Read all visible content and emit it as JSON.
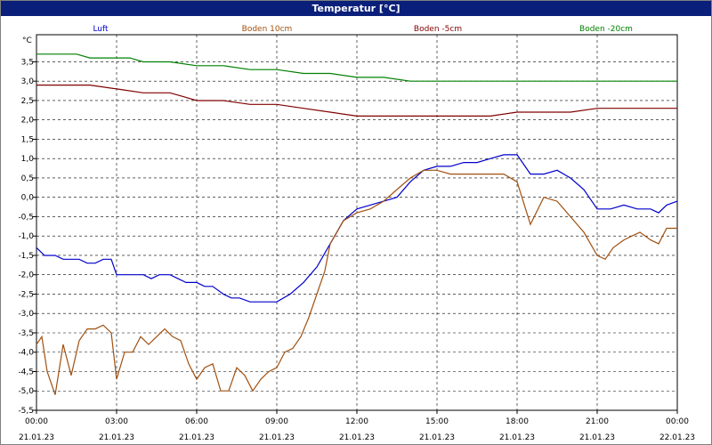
{
  "chart_data": {
    "type": "line",
    "title": "Temperatur [°C]",
    "ylabel": "°C",
    "xlabel": "",
    "ylim": [
      -5.5,
      4.0
    ],
    "y_ticks": [
      "3,5",
      "3,0",
      "2,5",
      "2,0",
      "1,5",
      "1,0",
      "0,5",
      "0,0",
      "-0,5",
      "-1,0",
      "-1,5",
      "-2,0",
      "-2,5",
      "-3,0",
      "-3,5",
      "-4,0",
      "-4,5",
      "-5,0",
      "-5,5"
    ],
    "y_tick_values": [
      3.5,
      3.0,
      2.5,
      2.0,
      1.5,
      1.0,
      0.5,
      0.0,
      -0.5,
      -1.0,
      -1.5,
      -2.0,
      -2.5,
      -3.0,
      -3.5,
      -4.0,
      -4.5,
      -5.0,
      -5.5
    ],
    "x_ticks": [
      {
        "time": "00:00",
        "date": "21.01.23",
        "hour": 0
      },
      {
        "time": "03:00",
        "date": "21.01.23",
        "hour": 3
      },
      {
        "time": "06:00",
        "date": "21.01.23",
        "hour": 6
      },
      {
        "time": "09:00",
        "date": "21.01.23",
        "hour": 9
      },
      {
        "time": "12:00",
        "date": "21.01.23",
        "hour": 12
      },
      {
        "time": "15:00",
        "date": "21.01.23",
        "hour": 15
      },
      {
        "time": "18:00",
        "date": "21.01.23",
        "hour": 18
      },
      {
        "time": "21:00",
        "date": "21.01.23",
        "hour": 21
      },
      {
        "time": "00:00",
        "date": "22.01.23",
        "hour": 24
      }
    ],
    "xlim": [
      0,
      24
    ],
    "grid": true,
    "legend_position": "top",
    "series": [
      {
        "name": "Luft",
        "color": "#0000cc",
        "x": [
          0,
          0.3,
          0.7,
          1.0,
          1.3,
          1.6,
          1.9,
          2.2,
          2.5,
          2.8,
          3.0,
          3.5,
          4.0,
          4.3,
          4.6,
          5.0,
          5.3,
          5.6,
          6.0,
          6.3,
          6.6,
          7.0,
          7.3,
          7.6,
          8.0,
          8.3,
          8.6,
          9.0,
          9.5,
          10.0,
          10.5,
          11.0,
          11.5,
          12.0,
          12.5,
          13.0,
          13.5,
          14.0,
          14.5,
          15.0,
          15.5,
          16.0,
          16.5,
          17.0,
          17.5,
          18.0,
          18.5,
          19.0,
          19.5,
          20.0,
          20.5,
          21.0,
          21.5,
          22.0,
          22.5,
          23.0,
          23.3,
          23.6,
          24.0
        ],
        "y": [
          -1.3,
          -1.5,
          -1.5,
          -1.6,
          -1.6,
          -1.6,
          -1.7,
          -1.7,
          -1.6,
          -1.6,
          -2.0,
          -2.0,
          -2.0,
          -2.1,
          -2.0,
          -2.0,
          -2.1,
          -2.2,
          -2.2,
          -2.3,
          -2.3,
          -2.5,
          -2.6,
          -2.6,
          -2.7,
          -2.7,
          -2.7,
          -2.7,
          -2.5,
          -2.2,
          -1.8,
          -1.2,
          -0.6,
          -0.3,
          -0.2,
          -0.1,
          0.0,
          0.4,
          0.7,
          0.8,
          0.8,
          0.9,
          0.9,
          1.0,
          1.1,
          1.1,
          0.6,
          0.6,
          0.7,
          0.5,
          0.2,
          -0.3,
          -0.3,
          -0.2,
          -0.3,
          -0.3,
          -0.4,
          -0.2,
          -0.1
        ]
      },
      {
        "name": "Boden 10cm",
        "color": "#a05010",
        "x": [
          0,
          0.2,
          0.4,
          0.7,
          1.0,
          1.3,
          1.6,
          1.9,
          2.2,
          2.5,
          2.8,
          3.0,
          3.3,
          3.6,
          3.9,
          4.2,
          4.5,
          4.8,
          5.1,
          5.4,
          5.7,
          6.0,
          6.3,
          6.6,
          6.9,
          7.2,
          7.5,
          7.8,
          8.1,
          8.4,
          8.7,
          9.0,
          9.3,
          9.6,
          9.9,
          10.2,
          10.5,
          10.8,
          11.0,
          11.5,
          12.0,
          12.5,
          13.0,
          13.5,
          14.0,
          14.5,
          15.0,
          15.5,
          16.0,
          16.5,
          17.0,
          17.5,
          18.0,
          18.5,
          19.0,
          19.5,
          20.0,
          20.5,
          21.0,
          21.3,
          21.6,
          22.0,
          22.3,
          22.6,
          23.0,
          23.3,
          23.6,
          24.0
        ],
        "y": [
          -3.8,
          -3.6,
          -4.5,
          -5.1,
          -3.8,
          -4.6,
          -3.7,
          -3.4,
          -3.4,
          -3.3,
          -3.5,
          -4.7,
          -4.0,
          -4.0,
          -3.6,
          -3.8,
          -3.6,
          -3.4,
          -3.6,
          -3.7,
          -4.3,
          -4.7,
          -4.4,
          -4.3,
          -5.0,
          -5.0,
          -4.4,
          -4.6,
          -5.0,
          -4.7,
          -4.5,
          -4.4,
          -4.0,
          -3.9,
          -3.6,
          -3.1,
          -2.5,
          -1.9,
          -1.2,
          -0.6,
          -0.4,
          -0.3,
          -0.1,
          0.2,
          0.5,
          0.7,
          0.7,
          0.6,
          0.6,
          0.6,
          0.6,
          0.6,
          0.4,
          -0.7,
          0.0,
          -0.1,
          -0.5,
          -0.9,
          -1.5,
          -1.6,
          -1.3,
          -1.1,
          -1.0,
          -0.9,
          -1.1,
          -1.2,
          -0.8,
          -0.8
        ]
      },
      {
        "name": "Boden -5cm",
        "color": "#800000",
        "x": [
          0,
          2.0,
          3.0,
          4.0,
          5.0,
          5.5,
          6.0,
          7.0,
          8.0,
          9.0,
          10.0,
          11.0,
          12.0,
          13.0,
          14.0,
          15.0,
          16.0,
          17.0,
          18.0,
          19.0,
          20.0,
          21.0,
          22.0,
          23.0,
          24.0
        ],
        "y": [
          2.9,
          2.9,
          2.8,
          2.7,
          2.7,
          2.6,
          2.5,
          2.5,
          2.4,
          2.4,
          2.3,
          2.2,
          2.1,
          2.1,
          2.1,
          2.1,
          2.1,
          2.1,
          2.2,
          2.2,
          2.2,
          2.3,
          2.3,
          2.3,
          2.3
        ]
      },
      {
        "name": "Boden -20cm",
        "color": "#008000",
        "x": [
          0,
          1.5,
          2.0,
          3.5,
          4.0,
          5.0,
          6.0,
          7.0,
          8.0,
          9.0,
          10.0,
          11.0,
          12.0,
          13.0,
          14.0,
          15.0,
          16.0,
          17.0,
          18.0,
          19.0,
          20.0,
          21.0,
          22.0,
          23.0,
          24.0
        ],
        "y": [
          3.7,
          3.7,
          3.6,
          3.6,
          3.5,
          3.5,
          3.4,
          3.4,
          3.3,
          3.3,
          3.2,
          3.2,
          3.1,
          3.1,
          3.0,
          3.0,
          3.0,
          3.0,
          3.0,
          3.0,
          3.0,
          3.0,
          3.0,
          3.0,
          3.0
        ]
      }
    ]
  }
}
